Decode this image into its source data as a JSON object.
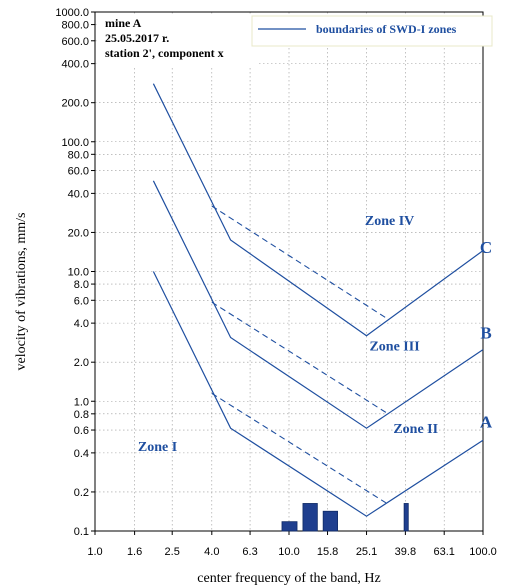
{
  "chart_data": {
    "type": "line",
    "xscale": "log",
    "yscale": "log",
    "xlim": [
      1.0,
      100.0
    ],
    "ylim": [
      0.1,
      1000.0
    ],
    "xlabel": "center frequency of the band, Hz",
    "ylabel": "velocity of vibrations, mm/s",
    "x_ticks": [
      "1.0",
      "1.6",
      "2.5",
      "4.0",
      "6.3",
      "10.0",
      "15.8",
      "25.1",
      "39.8",
      "63.1",
      "100.0"
    ],
    "x_tick_values": [
      1.0,
      1.6,
      2.5,
      4.0,
      6.3,
      10.0,
      15.8,
      25.1,
      39.8,
      63.1,
      100.0
    ],
    "y_ticks": [
      "0.1",
      "0.2",
      "0.4",
      "0.6",
      "0.8",
      "1.0",
      "2.0",
      "4.0",
      "6.0",
      "8.0",
      "10.0",
      "20.0",
      "40.0",
      "60.0",
      "80.0",
      "100.0",
      "200.0",
      "400.0",
      "600.0",
      "800.0",
      "1000.0"
    ],
    "y_tick_values": [
      0.1,
      0.2,
      0.4,
      0.6,
      0.8,
      1.0,
      2.0,
      4.0,
      6.0,
      8.0,
      10.0,
      20.0,
      40.0,
      60.0,
      80.0,
      100.0,
      200.0,
      400.0,
      600.0,
      800.0,
      1000.0
    ],
    "info_lines": [
      "mine A",
      "25.05.2017 r.",
      "station 2', component x"
    ],
    "legend": {
      "label": "boundaries of SWD-I zones",
      "position": "top-right"
    },
    "grid": true,
    "color": "#1f4fa0",
    "boundary_curves": [
      {
        "label": "A",
        "label_at": [
          100.0,
          0.7
        ],
        "points": [
          [
            2.0,
            10.0
          ],
          [
            5.0,
            0.62
          ],
          [
            25.1,
            0.13
          ],
          [
            100.0,
            0.5
          ]
        ]
      },
      {
        "label": "B",
        "label_at": [
          100.0,
          3.4
        ],
        "points": [
          [
            2.0,
            50.0
          ],
          [
            5.0,
            3.1
          ],
          [
            25.1,
            0.62
          ],
          [
            100.0,
            2.5
          ]
        ]
      },
      {
        "label": "C",
        "label_at": [
          100.0,
          15.5
        ],
        "points": [
          [
            2.0,
            280.0
          ],
          [
            5.0,
            17.5
          ],
          [
            25.1,
            3.2
          ],
          [
            100.0,
            14.5
          ]
        ]
      }
    ],
    "dashed_segments": [
      {
        "points": [
          [
            4.0,
            1.15
          ],
          [
            31.6,
            0.165
          ]
        ]
      },
      {
        "points": [
          [
            4.0,
            5.8
          ],
          [
            31.6,
            0.82
          ]
        ]
      },
      {
        "points": [
          [
            4.0,
            32.0
          ],
          [
            31.6,
            4.4
          ]
        ]
      }
    ],
    "zones": [
      {
        "label": "Zone I",
        "at": [
          2.1,
          0.45
        ]
      },
      {
        "label": "Zone II",
        "at": [
          45.0,
          0.62
        ]
      },
      {
        "label": "Zone III",
        "at": [
          35.0,
          2.7
        ]
      },
      {
        "label": "Zone IV",
        "at": [
          33.0,
          25.0
        ]
      }
    ],
    "bars": [
      {
        "x_from": 9.2,
        "x_to": 11.0,
        "value": 0.118
      },
      {
        "x_from": 11.8,
        "x_to": 14.0,
        "value": 0.163
      },
      {
        "x_from": 15.0,
        "x_to": 17.8,
        "value": 0.142
      },
      {
        "x_from": 39.2,
        "x_to": 41.2,
        "value": 0.163
      }
    ]
  }
}
